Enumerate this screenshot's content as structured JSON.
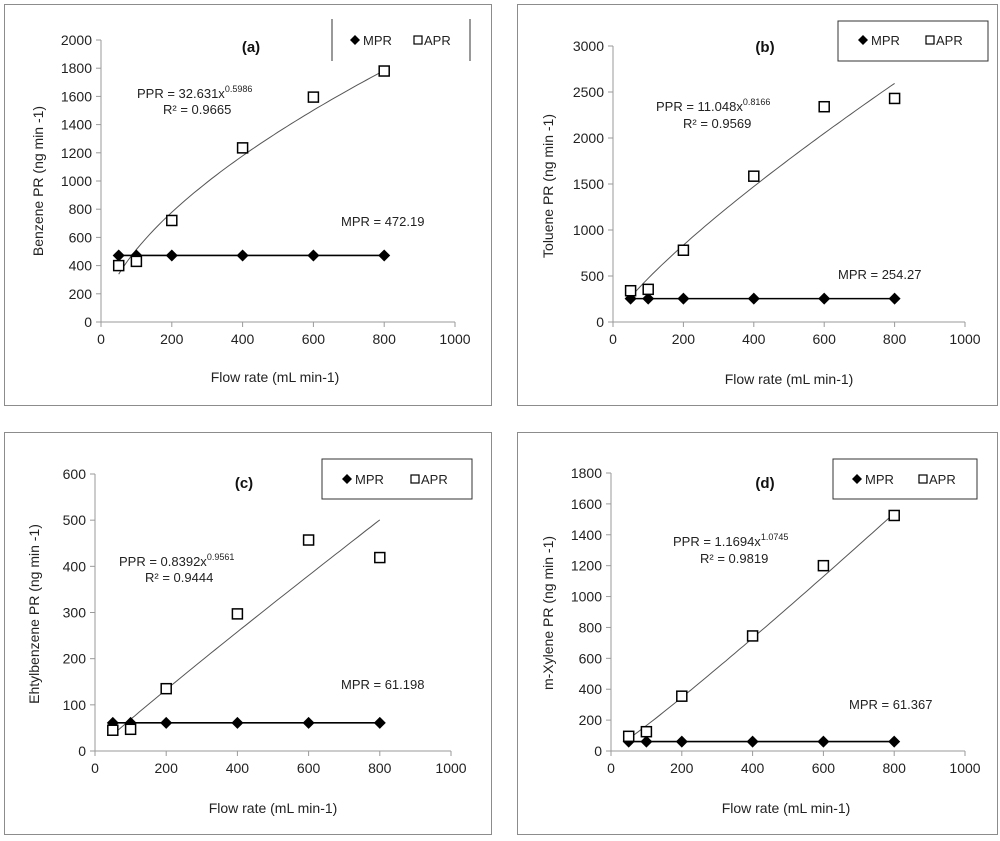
{
  "chart_data": [
    {
      "type": "scatter",
      "panel_label": "(a)",
      "xlabel": "Flow rate (mL min-1)",
      "ylabel": "Benzene PR (ng min -1)",
      "xlim": [
        0,
        1000
      ],
      "ylim": [
        0,
        2000
      ],
      "x_ticks": [
        0,
        200,
        400,
        600,
        800,
        1000
      ],
      "y_ticks": [
        0,
        200,
        400,
        600,
        800,
        1000,
        1200,
        1400,
        1600,
        1800,
        2000
      ],
      "legend": [
        {
          "symbol": "diamond",
          "label": "MPR"
        },
        {
          "symbol": "square",
          "label": "APR"
        }
      ],
      "series": [
        {
          "name": "MPR",
          "marker": "diamond",
          "line": "solid",
          "x": [
            50,
            100,
            200,
            400,
            600,
            800
          ],
          "values": [
            472,
            472,
            472,
            472,
            472,
            472
          ]
        },
        {
          "name": "APR",
          "marker": "square",
          "x": [
            50,
            100,
            200,
            400,
            600,
            800
          ],
          "values": [
            400,
            430,
            720,
            1235,
            1595,
            1780
          ]
        }
      ],
      "fit": {
        "a": 32.631,
        "b": 0.5986,
        "x_range": [
          50,
          800
        ]
      },
      "annotations": {
        "ppr_base": "PPR = 32.631x",
        "ppr_exp": "0.5986",
        "r2": "R² = 0.9665",
        "mpr": "MPR = 472.19"
      }
    },
    {
      "type": "scatter",
      "panel_label": "(b)",
      "xlabel": "Flow rate (mL min-1)",
      "ylabel": "Toluene PR (ng min -1)",
      "xlim": [
        0,
        1000
      ],
      "ylim": [
        0,
        3000
      ],
      "x_ticks": [
        0,
        200,
        400,
        600,
        800,
        1000
      ],
      "y_ticks": [
        0,
        500,
        1000,
        1500,
        2000,
        2500,
        3000
      ],
      "legend": [
        {
          "symbol": "diamond",
          "label": "MPR"
        },
        {
          "symbol": "square",
          "label": "APR"
        }
      ],
      "series": [
        {
          "name": "MPR",
          "marker": "diamond",
          "line": "solid",
          "x": [
            50,
            100,
            200,
            400,
            600,
            800
          ],
          "values": [
            254,
            254,
            254,
            254,
            254,
            254
          ]
        },
        {
          "name": "APR",
          "marker": "square",
          "x": [
            50,
            100,
            200,
            400,
            600,
            800
          ],
          "values": [
            340,
            355,
            780,
            1585,
            2340,
            2430
          ]
        }
      ],
      "fit": {
        "a": 11.048,
        "b": 0.8166,
        "x_range": [
          50,
          800
        ]
      },
      "annotations": {
        "ppr_base": "PPR = 11.048x",
        "ppr_exp": "0.8166",
        "r2": "R² = 0.9569",
        "mpr": "MPR = 254.27"
      }
    },
    {
      "type": "scatter",
      "panel_label": "(c)",
      "xlabel": "Flow rate (mL min-1)",
      "ylabel": "Ehtylbenzene PR (ng min -1)",
      "xlim": [
        0,
        1000
      ],
      "ylim": [
        0,
        600
      ],
      "x_ticks": [
        0,
        200,
        400,
        600,
        800,
        1000
      ],
      "y_ticks": [
        0,
        100,
        200,
        300,
        400,
        500,
        600
      ],
      "legend": [
        {
          "symbol": "diamond",
          "label": "MPR"
        },
        {
          "symbol": "square",
          "label": "APR"
        }
      ],
      "series": [
        {
          "name": "MPR",
          "marker": "diamond",
          "line": "solid",
          "x": [
            50,
            100,
            200,
            400,
            600,
            800
          ],
          "values": [
            61,
            61,
            61,
            61,
            61,
            61
          ]
        },
        {
          "name": "APR",
          "marker": "square",
          "x": [
            50,
            100,
            200,
            400,
            600,
            800
          ],
          "values": [
            45,
            47,
            135,
            297,
            457,
            419
          ]
        }
      ],
      "fit": {
        "a": 0.8392,
        "b": 0.9561,
        "x_range": [
          50,
          800
        ]
      },
      "annotations": {
        "ppr_base": "PPR = 0.8392x",
        "ppr_exp": "0.9561",
        "r2": "R² = 0.9444",
        "mpr": "MPR = 61.198"
      }
    },
    {
      "type": "scatter",
      "panel_label": "(d)",
      "xlabel": "Flow rate (mL min-1)",
      "ylabel": "m-Xylene PR (ng min -1)",
      "xlim": [
        0,
        1000
      ],
      "ylim": [
        0,
        1800
      ],
      "x_ticks": [
        0,
        200,
        400,
        600,
        800,
        1000
      ],
      "y_ticks": [
        0,
        200,
        400,
        600,
        800,
        1000,
        1200,
        1400,
        1600,
        1800
      ],
      "legend": [
        {
          "symbol": "diamond",
          "label": "MPR"
        },
        {
          "symbol": "square",
          "label": "APR"
        }
      ],
      "series": [
        {
          "name": "MPR",
          "marker": "diamond",
          "line": "solid",
          "x": [
            50,
            100,
            200,
            400,
            600,
            800
          ],
          "values": [
            61,
            61,
            61,
            61,
            61,
            61
          ]
        },
        {
          "name": "APR",
          "marker": "square",
          "x": [
            50,
            100,
            200,
            400,
            600,
            800
          ],
          "values": [
            95,
            125,
            355,
            745,
            1200,
            1525
          ]
        }
      ],
      "fit": {
        "a": 1.1694,
        "b": 1.0745,
        "x_range": [
          50,
          800
        ]
      },
      "annotations": {
        "ppr_base": "PPR = 1.1694x",
        "ppr_exp": "1.0745",
        "r2": "R² = 0.9819",
        "mpr": "MPR = 61.367"
      }
    }
  ]
}
